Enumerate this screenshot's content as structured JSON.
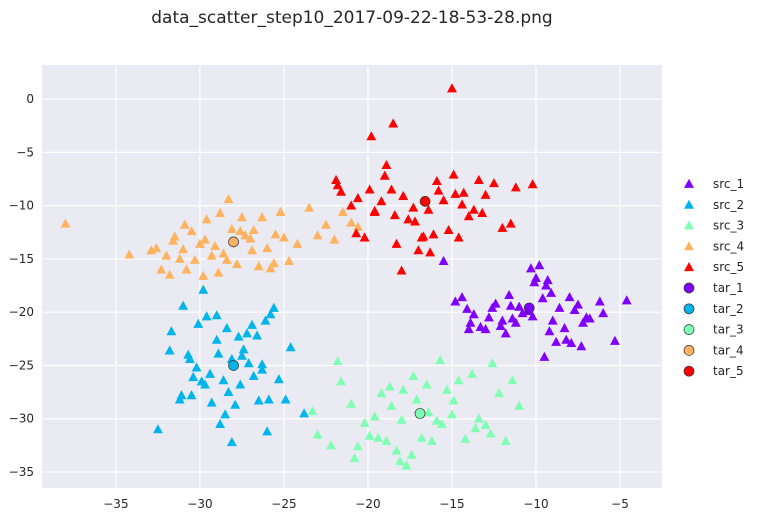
{
  "title": "data_scatter_step10_2017-09-22-18-53-28.png",
  "chart_data": {
    "type": "scatter",
    "title": "data_scatter_step10_2017-09-22-18-53-28.png",
    "xlabel": "",
    "ylabel": "",
    "xlim": [
      -39.4,
      -2.5
    ],
    "ylim": [
      -36.5,
      3.2
    ],
    "xticks": [
      -35,
      -30,
      -25,
      -20,
      -15,
      -10,
      -5
    ],
    "yticks": [
      0,
      -5,
      -10,
      -15,
      -20,
      -25,
      -30,
      -35
    ],
    "grid": true,
    "background": "#eaeaf2",
    "legend_position": "right",
    "series": [
      {
        "name": "src_1",
        "marker": "triangle",
        "color": "#8000ff",
        "x": [
          -4.6,
          -5.3,
          -6.2,
          -7.0,
          -7.2,
          -7.5,
          -7.9,
          -8.3,
          -8.6,
          -9.0,
          -9.4,
          -9.6,
          -9.8,
          -10.2,
          -10.5,
          -10.8,
          -11.2,
          -11.5,
          -11.8,
          -12.1,
          -12.4,
          -12.8,
          -13.3,
          -13.7,
          -14.0,
          -14.4,
          -14.8,
          -8.2,
          -9.1,
          -10.0,
          -11.0,
          -12.0,
          -13.0,
          -7.7,
          -6.8,
          -8.8,
          -9.3,
          -10.1,
          -11.4,
          -12.6,
          -15.5,
          -14.1,
          -10.3,
          -9.5,
          -13.9,
          -7.3,
          -8.0,
          -6.0,
          -9.2,
          -11.6
        ],
        "y": [
          -18.9,
          -22.7,
          -19.0,
          -20.5,
          -21.0,
          -19.3,
          -22.9,
          -21.5,
          -19.6,
          -20.8,
          -17.5,
          -18.7,
          -15.6,
          -20.4,
          -19.9,
          -20.1,
          -21.0,
          -19.4,
          -22.0,
          -21.3,
          -19.2,
          -20.5,
          -21.4,
          -20.2,
          -21.6,
          -18.6,
          -19.0,
          -22.6,
          -18.2,
          -16.8,
          -19.5,
          -20.8,
          -21.6,
          -19.8,
          -20.6,
          -22.8,
          -17.0,
          -17.2,
          -20.6,
          -19.6,
          -15.2,
          -19.7,
          -15.9,
          -24.2,
          -21.0,
          -23.2,
          -18.6,
          -20.1,
          -21.8,
          -18.4
        ]
      },
      {
        "name": "src_2",
        "marker": "triangle",
        "color": "#00b5eb",
        "x": [
          -32.5,
          -31.7,
          -31.2,
          -31.0,
          -30.7,
          -30.5,
          -30.2,
          -29.9,
          -29.6,
          -29.3,
          -29.0,
          -28.8,
          -28.6,
          -28.3,
          -28.1,
          -27.9,
          -27.6,
          -27.4,
          -27.1,
          -26.9,
          -26.6,
          -26.3,
          -26.1,
          -25.9,
          -25.6,
          -25.3,
          -24.9,
          -24.6,
          -23.8,
          -30.6,
          -31.8,
          -29.8,
          -28.4,
          -27.7,
          -26.5,
          -25.8,
          -30.1,
          -29.4,
          -28.9,
          -27.2,
          -26.8,
          -30.4,
          -29.0,
          -28.1,
          -27.5,
          -26.3,
          -29.7,
          -31.1,
          -28.5,
          -26.0
        ],
        "y": [
          -31.0,
          -21.8,
          -28.2,
          -19.4,
          -24.0,
          -27.8,
          -25.2,
          -26.5,
          -20.4,
          -28.5,
          -22.6,
          -30.5,
          -26.4,
          -27.5,
          -32.2,
          -28.7,
          -26.8,
          -23.5,
          -24.8,
          -21.2,
          -22.2,
          -25.4,
          -20.8,
          -28.2,
          -19.6,
          -26.3,
          -28.2,
          -23.3,
          -29.5,
          -24.4,
          -23.6,
          -17.9,
          -21.5,
          -22.3,
          -28.3,
          -20.2,
          -21.1,
          -25.8,
          -23.9,
          -22.0,
          -26.0,
          -26.1,
          -20.3,
          -24.4,
          -24.1,
          -24.9,
          -26.8,
          -27.8,
          -29.6,
          -31.2
        ]
      },
      {
        "name": "src_3",
        "marker": "triangle",
        "color": "#80ffb4",
        "x": [
          -23.3,
          -22.2,
          -21.6,
          -21.0,
          -20.6,
          -20.2,
          -19.9,
          -19.6,
          -19.2,
          -18.9,
          -18.6,
          -18.3,
          -18.0,
          -17.7,
          -17.4,
          -17.1,
          -16.8,
          -16.5,
          -16.2,
          -15.9,
          -15.6,
          -15.3,
          -15.0,
          -14.6,
          -14.2,
          -13.8,
          -13.4,
          -13.0,
          -12.6,
          -12.2,
          -11.8,
          -11.4,
          -11.0,
          -19.4,
          -20.8,
          -17.9,
          -16.4,
          -14.9,
          -13.6,
          -12.7,
          -18.7,
          -17.3,
          -15.7,
          -23.0,
          -21.8,
          -18.1
        ],
        "y": [
          -29.3,
          -32.5,
          -26.5,
          -28.6,
          -32.6,
          -30.4,
          -31.6,
          -29.8,
          -27.6,
          -32.1,
          -28.8,
          -33.0,
          -30.1,
          -34.4,
          -33.4,
          -28.2,
          -31.8,
          -26.8,
          -32.1,
          -30.2,
          -30.5,
          -27.3,
          -29.6,
          -26.4,
          -31.9,
          -25.8,
          -30.0,
          -30.6,
          -24.8,
          -27.6,
          -32.1,
          -26.4,
          -28.8,
          -31.8,
          -33.7,
          -27.3,
          -29.4,
          -28.3,
          -30.9,
          -31.4,
          -27.0,
          -26.0,
          -24.5,
          -31.5,
          -24.6,
          -34.0
        ]
      },
      {
        "name": "src_4",
        "marker": "triangle",
        "color": "#ffb360",
        "x": [
          -38.0,
          -34.2,
          -32.9,
          -32.6,
          -32.3,
          -32.0,
          -31.8,
          -31.5,
          -31.2,
          -31.0,
          -30.8,
          -30.5,
          -30.3,
          -30.0,
          -29.8,
          -29.6,
          -29.3,
          -29.1,
          -28.8,
          -28.6,
          -28.3,
          -28.1,
          -27.8,
          -27.5,
          -27.3,
          -27.0,
          -26.8,
          -26.5,
          -26.3,
          -26.0,
          -25.8,
          -25.5,
          -25.2,
          -25.0,
          -24.7,
          -24.2,
          -23.5,
          -23.0,
          -22.5,
          -22.0,
          -21.5,
          -21.0,
          -20.6,
          -29.7,
          -30.9,
          -28.4,
          -26.9,
          -25.6,
          -31.6,
          -28.9,
          -27.6
        ],
        "y": [
          -11.7,
          -14.6,
          -14.2,
          -14.0,
          -16.0,
          -14.7,
          -16.5,
          -12.9,
          -15.0,
          -14.1,
          -16.0,
          -12.4,
          -15.1,
          -13.6,
          -16.6,
          -11.3,
          -14.7,
          -13.8,
          -10.7,
          -14.5,
          -9.4,
          -12.2,
          -15.5,
          -11.1,
          -12.8,
          -13.1,
          -12.3,
          -15.7,
          -11.1,
          -14.0,
          -15.9,
          -12.7,
          -10.6,
          -13.0,
          -15.2,
          -13.6,
          -10.2,
          -12.8,
          -11.8,
          -13.2,
          -10.6,
          -11.6,
          -12.0,
          -13.2,
          -11.8,
          -15.1,
          -14.2,
          -15.4,
          -13.3,
          -16.3,
          -12.4
        ]
      },
      {
        "name": "src_5",
        "marker": "triangle",
        "color": "#ff0000",
        "x": [
          -15.0,
          -18.5,
          -19.8,
          -21.9,
          -21.6,
          -21.0,
          -20.6,
          -20.2,
          -19.9,
          -19.6,
          -19.2,
          -18.9,
          -18.6,
          -18.3,
          -18.0,
          -17.6,
          -17.3,
          -17.0,
          -16.7,
          -16.4,
          -16.1,
          -15.8,
          -15.5,
          -15.2,
          -14.9,
          -14.6,
          -14.3,
          -14.0,
          -13.7,
          -13.4,
          -13.0,
          -12.5,
          -12.0,
          -11.5,
          -11.2,
          -10.2,
          -19.6,
          -17.9,
          -16.3,
          -14.8,
          -13.2,
          -20.7,
          -19.0,
          -15.9,
          -17.2,
          -21.8,
          -18.4,
          -16.8,
          -14.4
        ],
        "y": [
          1.0,
          -2.3,
          -3.5,
          -7.6,
          -8.7,
          -10.0,
          -9.3,
          -13.0,
          -8.5,
          -10.6,
          -9.6,
          -6.2,
          -8.5,
          -13.6,
          -16.1,
          -11.3,
          -10.2,
          -14.2,
          -12.9,
          -10.4,
          -12.7,
          -8.6,
          -9.5,
          -12.3,
          -7.1,
          -13.0,
          -8.8,
          -11.0,
          -10.4,
          -7.6,
          -9.0,
          -7.9,
          -12.1,
          -11.7,
          -8.3,
          -8.0,
          -10.5,
          -9.1,
          -14.4,
          -8.9,
          -10.7,
          -12.6,
          -7.2,
          -7.7,
          -11.5,
          -8.1,
          -10.9,
          -13.0,
          -9.9
        ]
      },
      {
        "name": "tar_1",
        "marker": "circle",
        "color": "#8000ff",
        "x": [
          -10.4
        ],
        "y": [
          -19.6
        ]
      },
      {
        "name": "tar_2",
        "marker": "circle",
        "color": "#00b5eb",
        "x": [
          -28.0
        ],
        "y": [
          -25.0
        ]
      },
      {
        "name": "tar_3",
        "marker": "circle",
        "color": "#80ffb4",
        "x": [
          -16.9
        ],
        "y": [
          -29.5
        ]
      },
      {
        "name": "tar_4",
        "marker": "circle",
        "color": "#ffb360",
        "x": [
          -28.0
        ],
        "y": [
          -13.4
        ]
      },
      {
        "name": "tar_5",
        "marker": "circle",
        "color": "#ff0000",
        "x": [
          -16.6
        ],
        "y": [
          -9.6
        ]
      }
    ]
  }
}
